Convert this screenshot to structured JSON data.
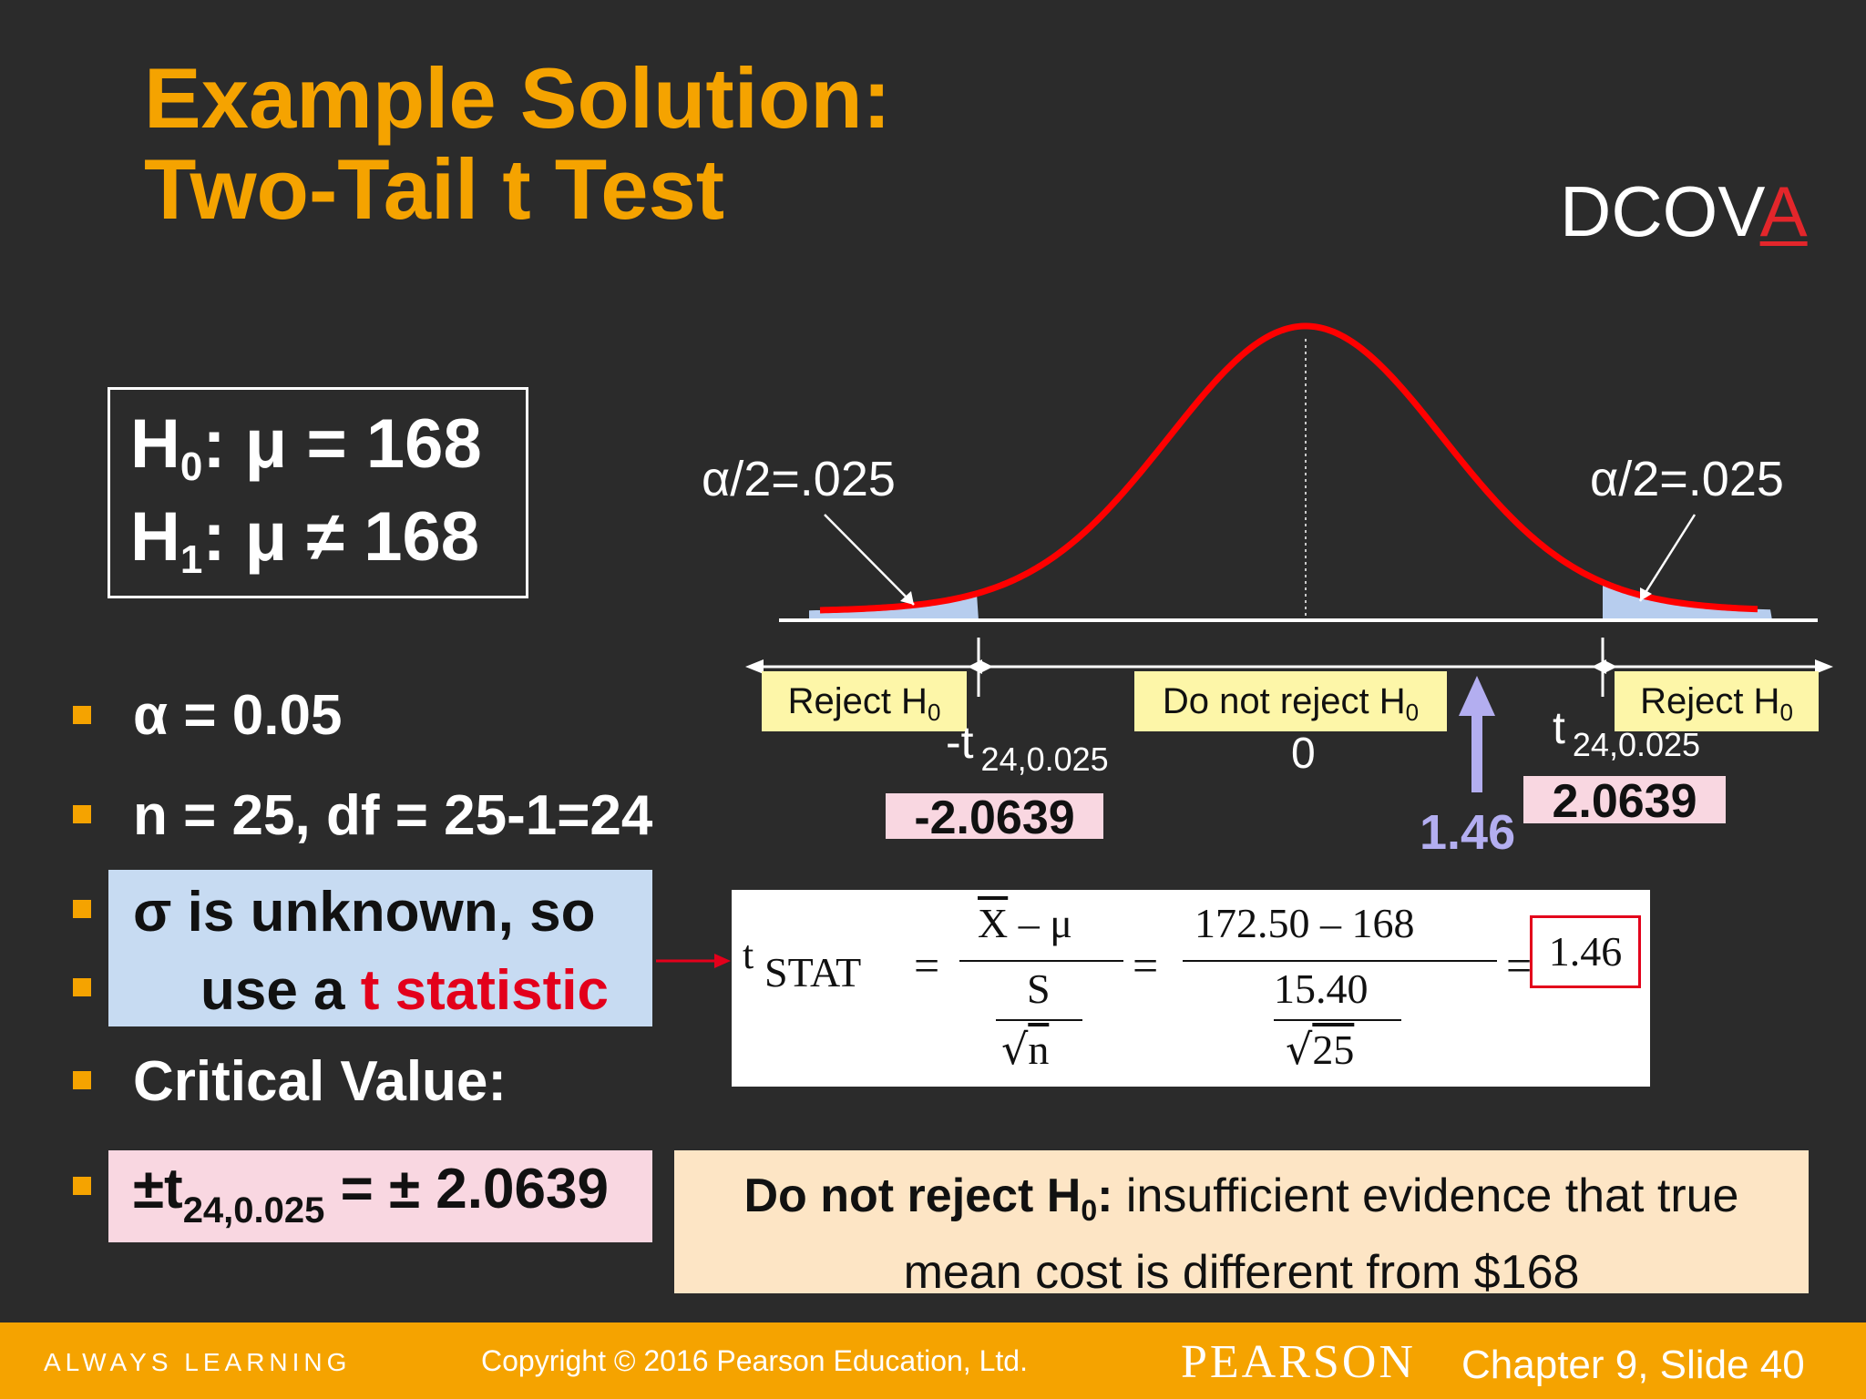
{
  "title": {
    "line1": "Example Solution:",
    "line2": "Two-Tail t Test"
  },
  "dcova": {
    "prefix": "DCOV",
    "highlight": "A"
  },
  "hypotheses": {
    "h0_symbol": "H",
    "h0_sub": "0",
    "h0_rest": ": μ = 168",
    "h1_symbol": "H",
    "h1_sub": "1",
    "h1_rest": ": μ ≠ 168"
  },
  "bullets": {
    "alpha": "α = 0.05",
    "n_df": "n = 25, df = 25-1=24",
    "sigma_line1": "σ is unknown, so",
    "sigma_line2_a": "use a ",
    "sigma_line2_b": "t statistic",
    "critical": "Critical Value:",
    "crit_prefix": "±t",
    "crit_sub": "24,0.025",
    "crit_rest": " = ± 2.0639"
  },
  "chart": {
    "alpha_left": "α/2=.025",
    "alpha_right": "α/2=.025",
    "reject_left": "Reject H",
    "reject_left_sub": "0",
    "do_not_reject": "Do not reject H",
    "do_not_reject_sub": "0",
    "reject_right": "Reject H",
    "reject_right_sub": "0",
    "neg_t_label": "-t",
    "neg_t_sub": "24,0.025",
    "pos_t_label": "t",
    "pos_t_sub": "24,0.025",
    "zero": "0",
    "neg_crit": "-2.0639",
    "pos_crit": "2.0639",
    "stat": "1.46",
    "colors": {
      "curve": "#ff0000",
      "tail": "#b7cdee",
      "stat_arrow": "#b3aef0"
    }
  },
  "formula": {
    "t": "t",
    "stat": "STAT",
    "eq": "=",
    "xbar": "X",
    "minus_mu": " – μ",
    "s": "S",
    "n": "n",
    "num2": "172.50 – 168",
    "den2": "15.40",
    "den2_root": "25",
    "result": "1.46"
  },
  "conclusion": {
    "bold": "Do not reject H",
    "bold_sub": "0",
    "colon": ":",
    "text1": " insufficient evidence that true",
    "text2": "mean cost is different from $168"
  },
  "footer": {
    "left": "ALWAYS LEARNING",
    "copyright": "Copyright © 2016 Pearson Education, Ltd.",
    "brand": "PEARSON",
    "chapter": "Chapter 9, Slide 40"
  }
}
